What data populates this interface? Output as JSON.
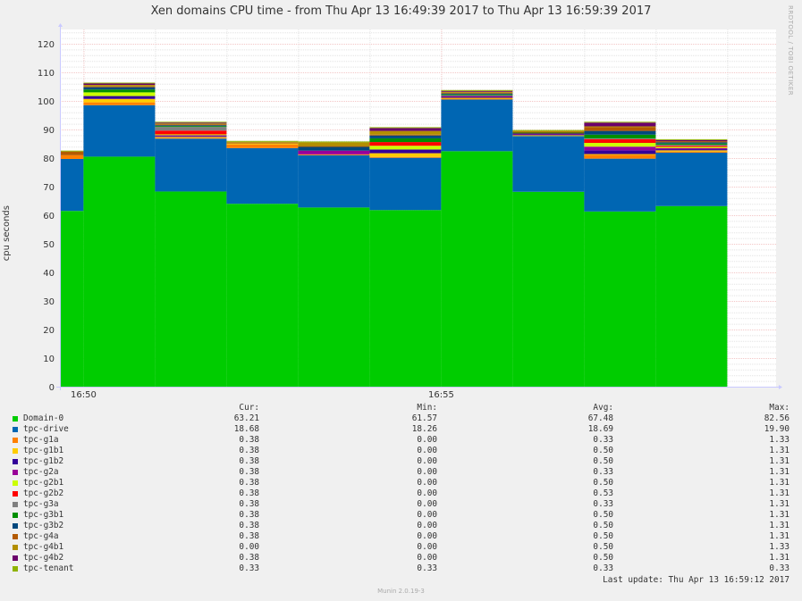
{
  "chart_data": {
    "type": "area",
    "title": "Xen domains CPU time - from Thu Apr 13 16:49:39 2017 to Thu Apr 13 16:59:39 2017",
    "ylabel": "cpu seconds",
    "ylim": [
      0,
      125
    ],
    "yticks": [
      0,
      10,
      20,
      30,
      40,
      50,
      60,
      70,
      80,
      90,
      100,
      110,
      120
    ],
    "x_start_min": 49.67,
    "x_end_min": 59.67,
    "xticks": [
      {
        "label": "16:50",
        "value": 50
      },
      {
        "label": "16:55",
        "value": 55
      }
    ],
    "intervals": [
      {
        "start": 49.67,
        "end": 50.0
      },
      {
        "start": 50.0,
        "end": 51.0
      },
      {
        "start": 51.0,
        "end": 52.0
      },
      {
        "start": 52.0,
        "end": 53.0
      },
      {
        "start": 53.0,
        "end": 54.0
      },
      {
        "start": 54.0,
        "end": 55.0
      },
      {
        "start": 55.0,
        "end": 56.0
      },
      {
        "start": 56.0,
        "end": 57.0
      },
      {
        "start": 57.0,
        "end": 58.0
      },
      {
        "start": 58.0,
        "end": 59.0
      }
    ],
    "grid": true,
    "series": [
      {
        "name": "Domain-0",
        "color": "#00cc00",
        "values": [
          61.5,
          80.5,
          68.3,
          64.0,
          62.7,
          61.8,
          82.4,
          68.2,
          61.3,
          63.2
        ]
      },
      {
        "name": "tpc-drive",
        "color": "#0066b3",
        "values": [
          18.2,
          18.0,
          18.5,
          19.5,
          18.3,
          18.3,
          18.1,
          19.5,
          18.5,
          18.7
        ]
      },
      {
        "name": "tpc-g1a",
        "color": "#ff8000",
        "values": [
          1.3,
          1.0,
          0.3,
          1.3,
          0.3,
          0.3,
          0.3,
          0.0,
          1.3,
          0.4
        ]
      },
      {
        "name": "tpc-g1b1",
        "color": "#ffcc00",
        "values": [
          0.0,
          1.2,
          0.3,
          0.3,
          0.0,
          1.3,
          0.3,
          0.3,
          0.3,
          0.4
        ]
      },
      {
        "name": "tpc-g1b2",
        "color": "#330099",
        "values": [
          0.0,
          1.0,
          0.3,
          0.0,
          0.0,
          1.3,
          0.3,
          0.3,
          1.3,
          0.4
        ]
      },
      {
        "name": "tpc-g2a",
        "color": "#990099",
        "values": [
          0.0,
          0.0,
          0.3,
          0.0,
          1.3,
          0.0,
          0.3,
          0.3,
          1.3,
          0.4
        ]
      },
      {
        "name": "tpc-g2b1",
        "color": "#ccff00",
        "values": [
          0.0,
          1.3,
          0.3,
          0.0,
          0.0,
          1.3,
          0.0,
          0.0,
          1.3,
          0.4
        ]
      },
      {
        "name": "tpc-g2b2",
        "color": "#ff0000",
        "values": [
          0.0,
          0.0,
          1.3,
          0.0,
          0.0,
          1.3,
          0.0,
          0.0,
          1.3,
          0.4
        ]
      },
      {
        "name": "tpc-g3a",
        "color": "#808080",
        "values": [
          0.0,
          0.0,
          1.3,
          0.0,
          0.0,
          0.0,
          0.3,
          0.0,
          0.3,
          0.4
        ]
      },
      {
        "name": "tpc-g3b1",
        "color": "#008f00",
        "values": [
          0.0,
          1.0,
          0.3,
          0.0,
          0.0,
          1.3,
          0.3,
          0.3,
          1.3,
          0.4
        ]
      },
      {
        "name": "tpc-g3b2",
        "color": "#00487d",
        "values": [
          0.0,
          0.8,
          0.3,
          0.0,
          1.3,
          1.0,
          0.3,
          0.0,
          1.3,
          0.4
        ]
      },
      {
        "name": "tpc-g4a",
        "color": "#b35a00",
        "values": [
          1.3,
          0.3,
          0.3,
          0.3,
          0.3,
          0.3,
          0.3,
          0.3,
          1.3,
          0.4
        ]
      },
      {
        "name": "tpc-g4b1",
        "color": "#b38f00",
        "values": [
          0.0,
          0.5,
          0.3,
          0.3,
          1.3,
          1.3,
          0.3,
          0.3,
          0.3,
          0.0
        ]
      },
      {
        "name": "tpc-g4b2",
        "color": "#6b006b",
        "values": [
          0.0,
          0.5,
          0.3,
          0.0,
          0.0,
          1.0,
          0.3,
          0.0,
          1.3,
          0.4
        ]
      },
      {
        "name": "tpc-tenant",
        "color": "#8fb300",
        "values": [
          0.3,
          0.3,
          0.3,
          0.3,
          0.3,
          0.3,
          0.3,
          0.3,
          0.3,
          0.3
        ]
      }
    ]
  },
  "watermark": "RRDTOOL / TOBI OETIKER",
  "legend": {
    "headers": {
      "cur": "Cur:",
      "min": "Min:",
      "avg": "Avg:",
      "max": "Max:"
    },
    "rows": [
      {
        "name": "Domain-0",
        "color": "#00cc00",
        "cur": "63.21",
        "min": "61.57",
        "avg": "67.48",
        "max": "82.56"
      },
      {
        "name": "tpc-drive",
        "color": "#0066b3",
        "cur": "18.68",
        "min": "18.26",
        "avg": "18.69",
        "max": "19.90"
      },
      {
        "name": "tpc-g1a",
        "color": "#ff8000",
        "cur": "0.38",
        "min": "0.00",
        "avg": "0.33",
        "max": "1.33"
      },
      {
        "name": "tpc-g1b1",
        "color": "#ffcc00",
        "cur": "0.38",
        "min": "0.00",
        "avg": "0.50",
        "max": "1.31"
      },
      {
        "name": "tpc-g1b2",
        "color": "#330099",
        "cur": "0.38",
        "min": "0.00",
        "avg": "0.50",
        "max": "1.31"
      },
      {
        "name": "tpc-g2a",
        "color": "#990099",
        "cur": "0.38",
        "min": "0.00",
        "avg": "0.33",
        "max": "1.31"
      },
      {
        "name": "tpc-g2b1",
        "color": "#ccff00",
        "cur": "0.38",
        "min": "0.00",
        "avg": "0.50",
        "max": "1.31"
      },
      {
        "name": "tpc-g2b2",
        "color": "#ff0000",
        "cur": "0.38",
        "min": "0.00",
        "avg": "0.53",
        "max": "1.31"
      },
      {
        "name": "tpc-g3a",
        "color": "#808080",
        "cur": "0.38",
        "min": "0.00",
        "avg": "0.33",
        "max": "1.31"
      },
      {
        "name": "tpc-g3b1",
        "color": "#008f00",
        "cur": "0.38",
        "min": "0.00",
        "avg": "0.50",
        "max": "1.31"
      },
      {
        "name": "tpc-g3b2",
        "color": "#00487d",
        "cur": "0.38",
        "min": "0.00",
        "avg": "0.50",
        "max": "1.31"
      },
      {
        "name": "tpc-g4a",
        "color": "#b35a00",
        "cur": "0.38",
        "min": "0.00",
        "avg": "0.50",
        "max": "1.31"
      },
      {
        "name": "tpc-g4b1",
        "color": "#b38f00",
        "cur": "0.00",
        "min": "0.00",
        "avg": "0.50",
        "max": "1.33"
      },
      {
        "name": "tpc-g4b2",
        "color": "#6b006b",
        "cur": "0.38",
        "min": "0.00",
        "avg": "0.50",
        "max": "1.31"
      },
      {
        "name": "tpc-tenant",
        "color": "#8fb300",
        "cur": "0.33",
        "min": "0.33",
        "avg": "0.33",
        "max": "0.33"
      }
    ]
  },
  "last_update": "Last update:  Thu Apr 13 16:59:12 2017",
  "version": "Munin 2.0.19-3"
}
